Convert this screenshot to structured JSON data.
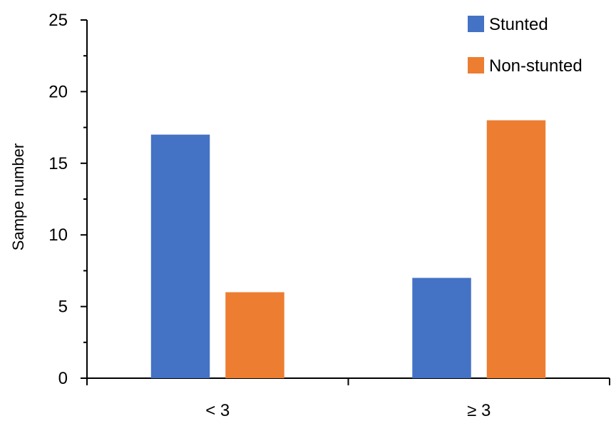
{
  "chart_data": {
    "type": "bar",
    "title": "",
    "xlabel": "",
    "ylabel": "Sampe number",
    "categories": [
      "< 3",
      "≥ 3"
    ],
    "series": [
      {
        "name": "Stunted",
        "values": [
          17,
          7
        ],
        "color": "#4472C4"
      },
      {
        "name": "Non-stunted",
        "values": [
          6,
          18
        ],
        "color": "#ED7D31"
      }
    ],
    "ylim": [
      0,
      25
    ],
    "yticks": [
      0,
      5,
      10,
      15,
      20,
      25
    ],
    "grid": false,
    "legend_position": "top-right"
  }
}
